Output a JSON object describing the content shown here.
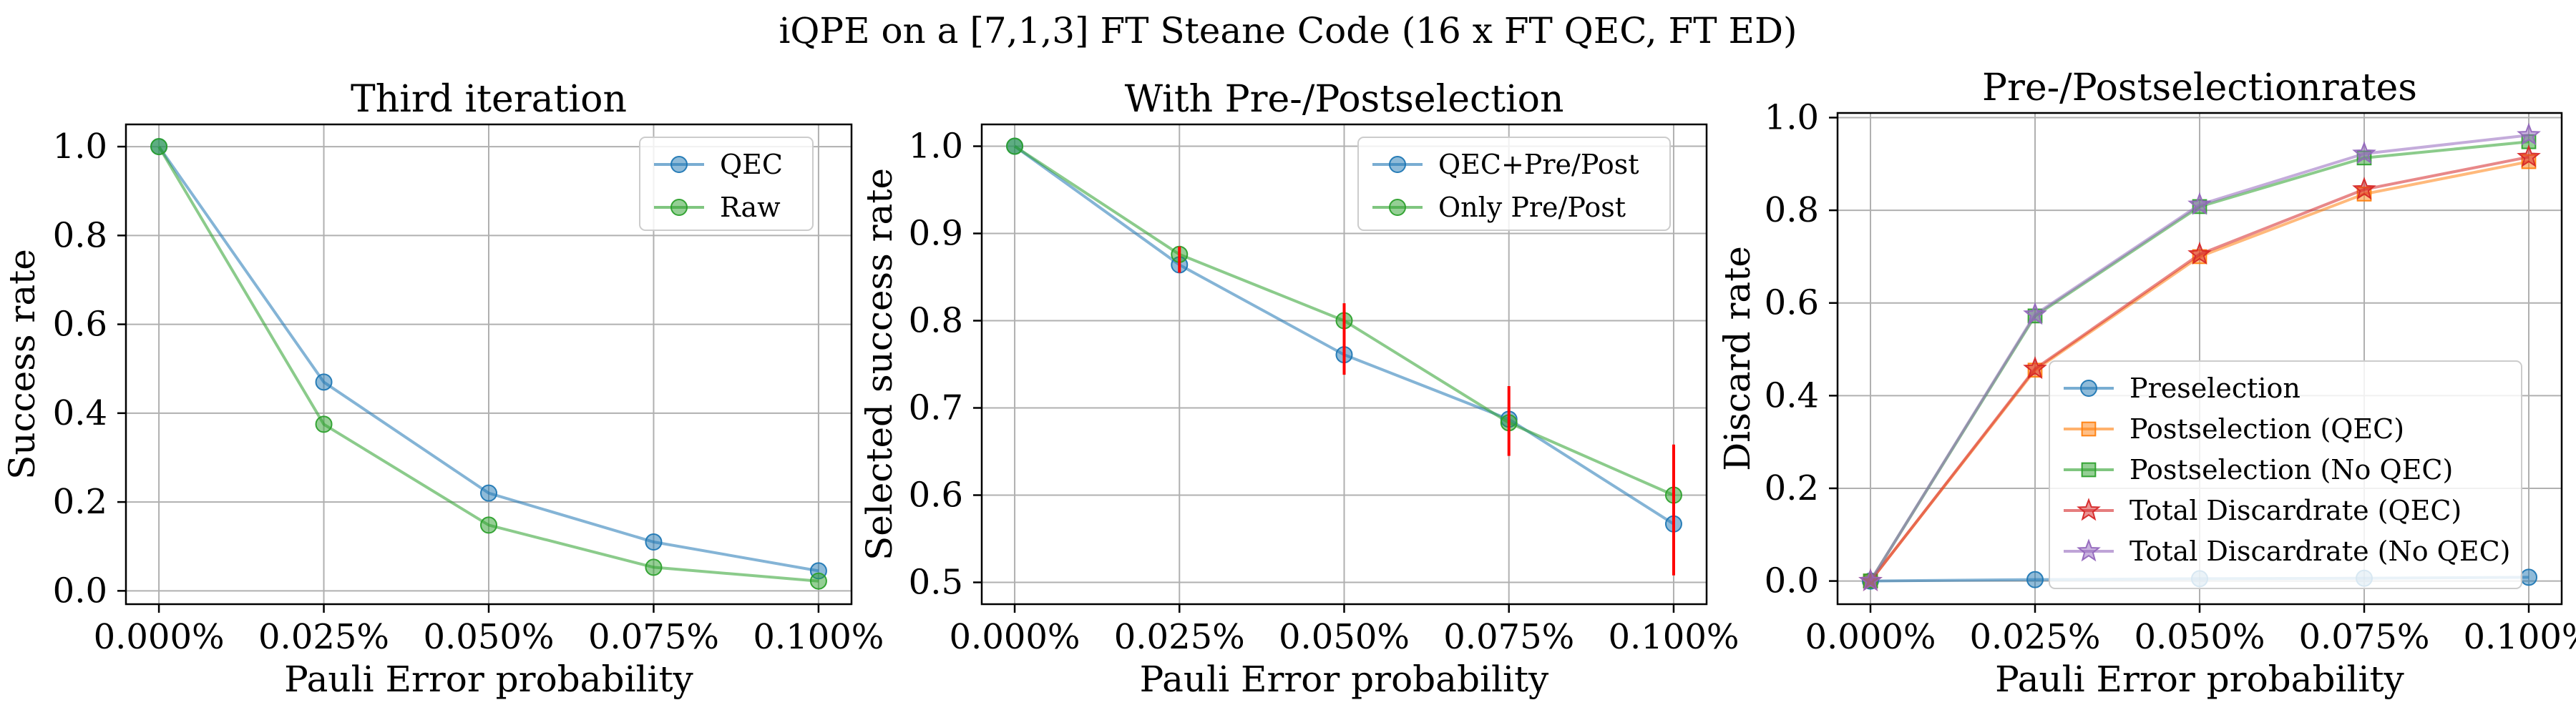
{
  "figure": {
    "suptitle": "iQPE on a [7,1,3] FT Steane Code (16 x FT QEC, FT ED)"
  },
  "chart_data": [
    {
      "type": "line",
      "title": "Third iteration",
      "xlabel": "Pauli Error probability",
      "ylabel": "Success rate",
      "x": [
        0.0,
        0.025,
        0.05,
        0.075,
        0.1
      ],
      "x_tick_labels": [
        "0.000%",
        "0.025%",
        "0.050%",
        "0.075%",
        "0.100%"
      ],
      "xlim": [
        -0.005,
        0.105
      ],
      "ylim": [
        -0.03,
        1.05
      ],
      "y_ticks": [
        0.0,
        0.2,
        0.4,
        0.6,
        0.8,
        1.0
      ],
      "y_tick_labels": [
        "0.0",
        "0.2",
        "0.4",
        "0.6",
        "0.8",
        "1.0"
      ],
      "grid": true,
      "legend_position": "top-right",
      "series": [
        {
          "name": "QEC",
          "color": "#1f77b4",
          "marker": "circle",
          "values": [
            1.0,
            0.47,
            0.22,
            0.11,
            0.045
          ]
        },
        {
          "name": "Raw",
          "color": "#2ca02c",
          "marker": "circle",
          "values": [
            1.0,
            0.375,
            0.148,
            0.053,
            0.022
          ]
        }
      ],
      "error_bars": []
    },
    {
      "type": "line",
      "title": "With Pre-/Postselection",
      "xlabel": "Pauli Error probability",
      "ylabel": "Selected success rate",
      "x": [
        0.0,
        0.025,
        0.05,
        0.075,
        0.1
      ],
      "x_tick_labels": [
        "0.000%",
        "0.025%",
        "0.050%",
        "0.075%",
        "0.100%"
      ],
      "xlim": [
        -0.005,
        0.105
      ],
      "ylim": [
        0.475,
        1.025
      ],
      "y_ticks": [
        0.5,
        0.6,
        0.7,
        0.8,
        0.9,
        1.0
      ],
      "y_tick_labels": [
        "0.5",
        "0.6",
        "0.7",
        "0.8",
        "0.9",
        "1.0"
      ],
      "grid": true,
      "legend_position": "top-right",
      "series": [
        {
          "name": "QEC+Pre/Post",
          "color": "#1f77b4",
          "marker": "circle",
          "values": [
            1.0,
            0.864,
            0.761,
            0.687,
            0.567
          ]
        },
        {
          "name": "Only Pre/Post",
          "color": "#2ca02c",
          "marker": "circle",
          "values": [
            1.0,
            0.876,
            0.8,
            0.683,
            0.6
          ]
        }
      ],
      "error_bars": [
        {
          "x": 0.025,
          "low": 0.855,
          "high": 0.885,
          "color": "#ff0000"
        },
        {
          "x": 0.05,
          "low": 0.738,
          "high": 0.82,
          "color": "#ff0000"
        },
        {
          "x": 0.075,
          "low": 0.645,
          "high": 0.725,
          "color": "#ff0000"
        },
        {
          "x": 0.1,
          "low": 0.508,
          "high": 0.658,
          "color": "#ff0000"
        }
      ]
    },
    {
      "type": "line",
      "title": "Pre-/Postselectionrates",
      "xlabel": "Pauli Error probability",
      "ylabel": "Discard rate",
      "x": [
        0.0,
        0.025,
        0.05,
        0.075,
        0.1
      ],
      "x_tick_labels": [
        "0.000%",
        "0.025%",
        "0.050%",
        "0.075%",
        "0.100%"
      ],
      "xlim": [
        -0.005,
        0.105
      ],
      "ylim": [
        -0.05,
        1.01
      ],
      "y_ticks": [
        0.0,
        0.2,
        0.4,
        0.6,
        0.8,
        1.0
      ],
      "y_tick_labels": [
        "0.0",
        "0.2",
        "0.4",
        "0.6",
        "0.8",
        "1.0"
      ],
      "grid": true,
      "legend_position": "lower-right",
      "series": [
        {
          "name": "Preselection",
          "color": "#1f77b4",
          "marker": "circle",
          "values": [
            0.0,
            0.003,
            0.005,
            0.006,
            0.008
          ]
        },
        {
          "name": "Postselection (QEC)",
          "color": "#ff7f0e",
          "marker": "square",
          "values": [
            0.0,
            0.455,
            0.7,
            0.835,
            0.905
          ]
        },
        {
          "name": "Postselection (No QEC)",
          "color": "#2ca02c",
          "marker": "square",
          "values": [
            0.0,
            0.572,
            0.808,
            0.913,
            0.948
          ]
        },
        {
          "name": "Total Discardrate (QEC)",
          "color": "#d62728",
          "marker": "star",
          "values": [
            0.0,
            0.458,
            0.705,
            0.845,
            0.915
          ]
        },
        {
          "name": "Total Discardrate (No QEC)",
          "color": "#9467bd",
          "marker": "star",
          "values": [
            0.0,
            0.575,
            0.812,
            0.922,
            0.962
          ]
        }
      ],
      "error_bars": []
    }
  ]
}
